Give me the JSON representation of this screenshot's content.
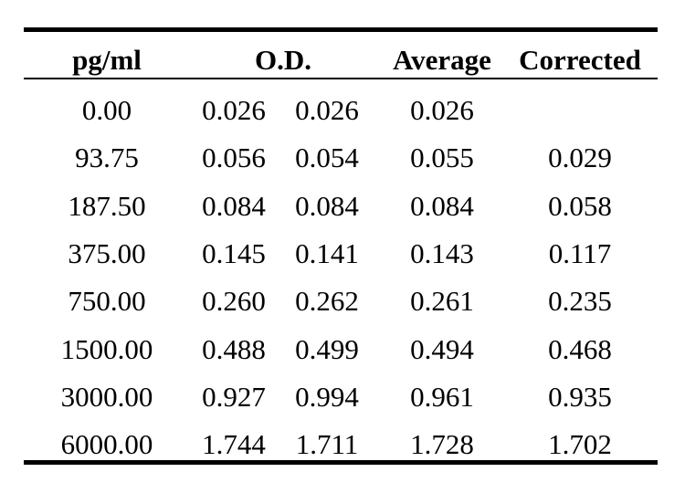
{
  "table": {
    "headers": {
      "concentration": "pg/ml",
      "od": "O.D.",
      "average": "Average",
      "corrected": "Corrected"
    },
    "rows": [
      {
        "conc": "0.00",
        "od1": "0.026",
        "od2": "0.026",
        "avg": "0.026",
        "corr": ""
      },
      {
        "conc": "93.75",
        "od1": "0.056",
        "od2": "0.054",
        "avg": "0.055",
        "corr": "0.029"
      },
      {
        "conc": "187.50",
        "od1": "0.084",
        "od2": "0.084",
        "avg": "0.084",
        "corr": "0.058"
      },
      {
        "conc": "375.00",
        "od1": "0.145",
        "od2": "0.141",
        "avg": "0.143",
        "corr": "0.117"
      },
      {
        "conc": "750.00",
        "od1": "0.260",
        "od2": "0.262",
        "avg": "0.261",
        "corr": "0.235"
      },
      {
        "conc": "1500.00",
        "od1": "0.488",
        "od2": "0.499",
        "avg": "0.494",
        "corr": "0.468"
      },
      {
        "conc": "3000.00",
        "od1": "0.927",
        "od2": "0.994",
        "avg": "0.961",
        "corr": "0.935"
      },
      {
        "conc": "6000.00",
        "od1": "1.744",
        "od2": "1.711",
        "avg": "1.728",
        "corr": "1.702"
      }
    ]
  }
}
